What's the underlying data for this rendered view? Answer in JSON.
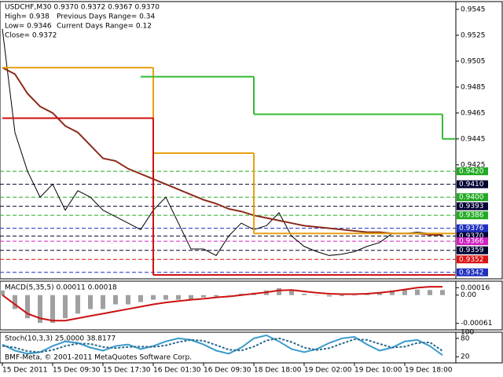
{
  "header": {
    "symbol": "USDCHF,M30  0.9370 0.9372 0.9367 0.9370",
    "high": "High= 0.938",
    "prev_range": "Previous Days Range= 0.34",
    "low": "Low= 0.9346",
    "cur_range": "Current Days Range= 0.12",
    "close": "Close= 0.9372"
  },
  "footer": "BMF-Meta, © 2001-2011 MetaQuotes Software Corp.",
  "chart_data": [
    {
      "type": "line",
      "ylim": [
        0.9337,
        0.9551
      ],
      "yticks": [
        0.9545,
        0.9525,
        0.9505,
        0.9485,
        0.9465,
        0.9445,
        0.9425
      ],
      "levels": [
        {
          "value": 0.942,
          "label": "0.9420",
          "color": "#22aa22"
        },
        {
          "value": 0.941,
          "label": "0.9410",
          "color": "#000033"
        },
        {
          "value": 0.94,
          "label": "0.9400",
          "color": "#22aa22"
        },
        {
          "value": 0.9393,
          "color": "#000033"
        },
        {
          "value": 0.9386,
          "color": "#22aa22"
        },
        {
          "value": 0.9376,
          "color": "#1f2fbf"
        },
        {
          "value": 0.937,
          "label": "0.9370",
          "color": "#000033"
        },
        {
          "value": 0.9366,
          "color": "#d020c0"
        },
        {
          "value": 0.9359,
          "color": "#000033"
        },
        {
          "value": 0.9352,
          "color": "#dd1111"
        },
        {
          "value": 0.9342,
          "color": "#1f2fbf"
        }
      ],
      "series": [
        {
          "name": "Close",
          "color": "#000000",
          "values": [
            0.953,
            0.945,
            0.942,
            0.94,
            0.941,
            0.939,
            0.9405,
            0.94,
            0.939,
            0.9385,
            0.938,
            0.9375,
            0.939,
            0.94,
            0.938,
            0.936,
            0.936,
            0.9355,
            0.937,
            0.938,
            0.9375,
            0.9378,
            0.9388,
            0.937,
            0.9362,
            0.9358,
            0.9355,
            0.9356,
            0.9358,
            0.9362,
            0.9365,
            0.9372,
            0.9372,
            0.9373,
            0.9372,
            0.937
          ]
        },
        {
          "name": "MA",
          "color": "#8b2a1a",
          "values": [
            0.95,
            0.9495,
            0.948,
            0.947,
            0.9465,
            0.9455,
            0.945,
            0.944,
            0.943,
            0.9428,
            0.9422,
            0.9418,
            0.9414,
            0.941,
            0.9406,
            0.9402,
            0.9398,
            0.9395,
            0.9391,
            0.9389,
            0.9386,
            0.9384,
            0.9382,
            0.938,
            0.9378,
            0.9377,
            0.9376,
            0.9375,
            0.9374,
            0.9373,
            0.9373,
            0.9372,
            0.9372,
            0.9372,
            0.9371,
            0.9371
          ]
        },
        {
          "name": "R1",
          "color": "#e8a010",
          "step": true,
          "values": [
            0.95,
            0.95,
            0.95,
            0.95,
            0.95,
            0.95,
            0.95,
            0.95,
            0.95,
            0.95,
            0.95,
            0.95,
            0.9434,
            0.9434,
            0.9434,
            0.9434,
            0.9434,
            0.9434,
            0.9434,
            0.9434,
            0.9372,
            0.9372,
            0.9372,
            0.9372,
            0.9372,
            0.9372,
            0.9372,
            0.9372,
            0.9372,
            0.9372,
            0.9372,
            0.9372,
            0.9372,
            0.9372,
            0.9372,
            0.9372
          ]
        },
        {
          "name": "S1",
          "color": "#cc1111",
          "step": true,
          "values": [
            0.9461,
            0.9461,
            0.9461,
            0.9461,
            0.9461,
            0.9461,
            0.9461,
            0.9461,
            0.9461,
            0.9461,
            0.9461,
            0.9461,
            0.934,
            0.934,
            0.934,
            0.934,
            0.934,
            0.934,
            0.934,
            0.934,
            0.934,
            0.934,
            0.934,
            0.934,
            0.934,
            0.934,
            0.934,
            0.934,
            0.934,
            0.934,
            0.934,
            0.934,
            0.934,
            0.934,
            0.934,
            0.934
          ]
        },
        {
          "name": "R2",
          "color": "#33bb33",
          "step": true,
          "values": [
            null,
            null,
            null,
            null,
            null,
            null,
            null,
            null,
            null,
            null,
            null,
            0.9493,
            0.9493,
            0.9493,
            0.9493,
            0.9493,
            0.9493,
            0.9493,
            0.9493,
            0.9493,
            0.9464,
            0.9464,
            0.9464,
            0.9464,
            0.9464,
            0.9464,
            0.9464,
            0.9464,
            0.9464,
            0.9464,
            0.9464,
            0.9464,
            0.9464,
            0.9464,
            0.9464,
            0.9445
          ]
        }
      ]
    },
    {
      "type": "bar",
      "title": "MACD(5,35,5) 0.00011 0.00018",
      "ylim": [
        -0.00075,
        0.0003
      ],
      "yticks": [
        0.00016,
        {
          "value": 0,
          "label": "0.00"
        },
        -0.00061
      ],
      "series": [
        {
          "name": "MACD",
          "color": "#a0a0a0",
          "values": [
            0.0001,
            -0.0003,
            -0.0005,
            -0.0006,
            -0.0006,
            -0.0005,
            -0.0004,
            -0.0003,
            -0.0003,
            -0.0002,
            -0.0002,
            -0.00015,
            -0.0001,
            -0.0001,
            -0.0001,
            -0.0001,
            -5e-05,
            -3e-05,
            0,
            3e-05,
            5e-05,
            0.0001,
            0.00015,
            0.0001,
            3e-05,
            0,
            -3e-05,
            -2e-05,
            0,
            3e-05,
            6e-05,
            0.0001,
            0.00011,
            0.00012,
            0.00011,
            0.00011
          ]
        },
        {
          "name": "Signal",
          "color": "#cc1111",
          "line": true,
          "values": [
            0,
            -0.0002,
            -0.0004,
            -0.0005,
            -0.00055,
            -0.00055,
            -0.0005,
            -0.00045,
            -0.0004,
            -0.00035,
            -0.0003,
            -0.00025,
            -0.0002,
            -0.00016,
            -0.00013,
            -0.0001,
            -8e-05,
            -5e-05,
            -3e-05,
            0,
            3e-05,
            6e-05,
            0.0001,
            0.00011,
            8e-05,
            5e-05,
            3e-05,
            2e-05,
            2e-05,
            3e-05,
            5e-05,
            8e-05,
            0.00012,
            0.00016,
            0.00018,
            0.00018
          ]
        }
      ]
    },
    {
      "type": "line",
      "title": "Stoch(10,3,3) 25.0000 38.8177",
      "ylim": [
        0,
        100
      ],
      "yticks": [
        20,
        80,
        100
      ],
      "categories": [
        "15 Dec 2011",
        null,
        null,
        null,
        "15 Dec 09:30",
        null,
        null,
        null,
        "15 Dec 17:30",
        null,
        null,
        null,
        "16 Dec 01:30",
        null,
        null,
        null,
        "16 Dec 09:30",
        null,
        null,
        null,
        "18 Dec 18:00",
        null,
        null,
        null,
        "19 Dec 02:00",
        null,
        null,
        null,
        "19 Dec 10:00",
        null,
        null,
        null,
        "19 Dec 18:00",
        null,
        null,
        null
      ],
      "series": [
        {
          "name": "Main",
          "color": "#3a9acb",
          "values": [
            60,
            40,
            30,
            35,
            55,
            70,
            65,
            50,
            40,
            55,
            60,
            45,
            55,
            70,
            80,
            75,
            60,
            40,
            30,
            50,
            80,
            90,
            70,
            45,
            35,
            45,
            65,
            80,
            85,
            60,
            40,
            50,
            70,
            75,
            55,
            25
          ]
        },
        {
          "name": "Signal",
          "color": "#2a6a8b",
          "dashed": true,
          "values": [
            55,
            50,
            38,
            35,
            42,
            55,
            63,
            62,
            52,
            48,
            52,
            53,
            52,
            57,
            68,
            75,
            72,
            58,
            43,
            40,
            53,
            73,
            80,
            68,
            50,
            42,
            48,
            63,
            77,
            75,
            62,
            50,
            53,
            65,
            67,
            38.8177
          ]
        }
      ]
    }
  ]
}
